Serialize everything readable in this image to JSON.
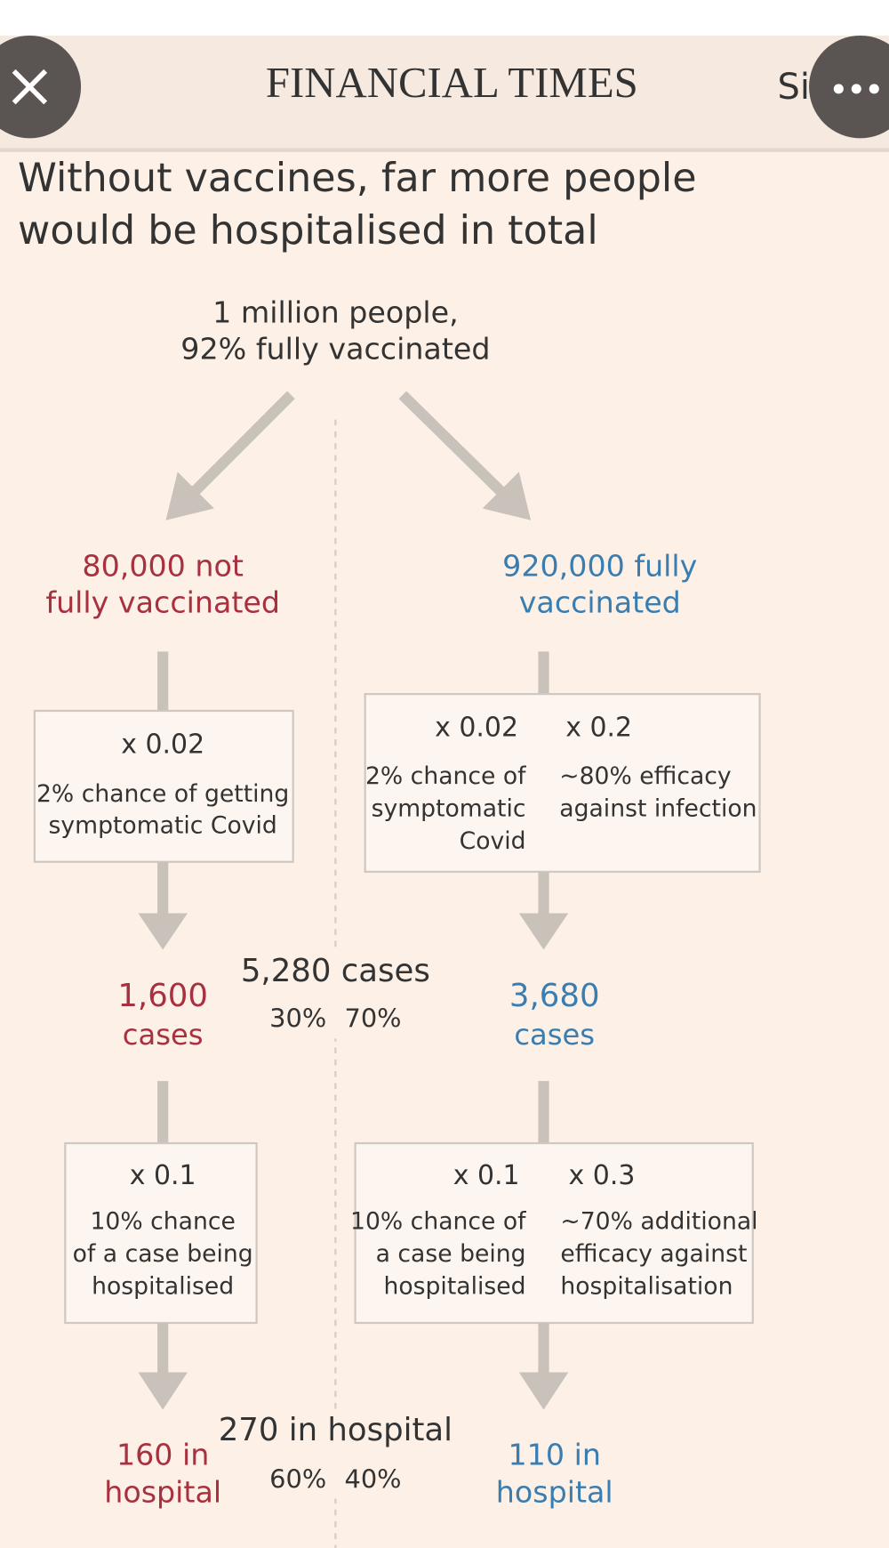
{
  "header": {
    "title": "FINANCIAL TIMES",
    "sign_in": "Sign In"
  },
  "headline": [
    "Without vaccines, far more people",
    "would be hospitalised in total"
  ],
  "root": [
    "1 million people,",
    "92% fully vaccinated"
  ],
  "left": {
    "group": [
      "80,000 not",
      "fully vaccinated"
    ],
    "step1": {
      "factor": "x 0.02",
      "note": [
        "2% chance of getting",
        "symptomatic Covid"
      ]
    },
    "cases": [
      "1,600",
      "cases"
    ],
    "step2": {
      "factor": "x 0.1",
      "note": [
        "10% chance",
        "of a case being",
        "hospitalised"
      ]
    },
    "hospital": [
      "160 in",
      "hospital"
    ]
  },
  "right": {
    "group": [
      "920,000 fully",
      "vaccinated"
    ],
    "step1": [
      {
        "factor": "x 0.02",
        "note": [
          "2% chance of",
          "symptomatic",
          "Covid"
        ]
      },
      {
        "factor": "x 0.2",
        "note": [
          "~80% efficacy",
          "against infection"
        ]
      }
    ],
    "cases": [
      "3,680",
      "cases"
    ],
    "step2": [
      {
        "factor": "x 0.1",
        "note": [
          "10% chance of",
          "a case being",
          "hospitalised"
        ]
      },
      {
        "factor": "x 0.3",
        "note": [
          "~70% additional",
          "efficacy against",
          "hospitalisation"
        ]
      }
    ],
    "hospital": [
      "110 in",
      "hospital"
    ]
  },
  "totals": {
    "cases": {
      "label": "5,280 cases",
      "split": [
        "30%",
        "70%"
      ]
    },
    "hospital": {
      "label": "270 in hospital",
      "split": [
        "60%",
        "40%"
      ]
    }
  }
}
